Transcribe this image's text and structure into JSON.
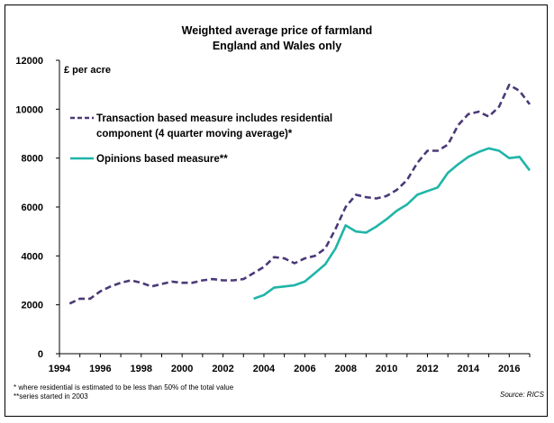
{
  "chart_data": {
    "type": "line",
    "title": "Weighted average price of farmland",
    "subtitle": "England and Wales only",
    "ylabel": "£ per acre",
    "xlim": [
      1994,
      2017
    ],
    "ylim": [
      0,
      12000
    ],
    "x_ticks": [
      1994,
      1996,
      1998,
      2000,
      2002,
      2004,
      2006,
      2008,
      2010,
      2012,
      2014,
      2016
    ],
    "y_ticks": [
      0,
      2000,
      4000,
      6000,
      8000,
      10000,
      12000
    ],
    "grid": false,
    "legend_position": "top-left",
    "series": [
      {
        "name": "Transaction based measure includes residential component (4 quarter moving average)*",
        "legend_lines": [
          "Transaction based measure includes residential",
          "component (4 quarter moving average)*"
        ],
        "color": "#4b3a78",
        "style": "dashed",
        "x": [
          1994.5,
          1995.0,
          1995.5,
          1996.0,
          1996.5,
          1997.0,
          1997.5,
          1998.0,
          1998.5,
          1999.0,
          1999.5,
          2000.0,
          2000.5,
          2001.0,
          2001.5,
          2002.0,
          2002.5,
          2003.0,
          2003.5,
          2004.0,
          2004.5,
          2005.0,
          2005.5,
          2006.0,
          2006.5,
          2007.0,
          2007.5,
          2008.0,
          2008.5,
          2009.0,
          2009.5,
          2010.0,
          2010.5,
          2011.0,
          2011.5,
          2012.0,
          2012.5,
          2013.0,
          2013.5,
          2014.0,
          2014.5,
          2015.0,
          2015.5,
          2016.0,
          2016.5,
          2017.0
        ],
        "values": [
          2050,
          2250,
          2250,
          2550,
          2750,
          2900,
          3000,
          2900,
          2750,
          2850,
          2950,
          2900,
          2900,
          3000,
          3050,
          3000,
          3000,
          3050,
          3300,
          3550,
          3950,
          3900,
          3700,
          3900,
          4000,
          4300,
          5100,
          6000,
          6500,
          6400,
          6350,
          6450,
          6700,
          7100,
          7800,
          8300,
          8300,
          8550,
          9350,
          9800,
          9900,
          9700,
          10100,
          11000,
          10750,
          10200
        ]
      },
      {
        "name": "Opinions based measure**",
        "legend_lines": [
          "Opinions based measure**"
        ],
        "color": "#1fb5a8",
        "style": "solid",
        "x": [
          2003.5,
          2004.0,
          2004.5,
          2005.0,
          2005.5,
          2006.0,
          2006.5,
          2007.0,
          2007.5,
          2008.0,
          2008.5,
          2009.0,
          2009.5,
          2010.0,
          2010.5,
          2011.0,
          2011.5,
          2012.0,
          2012.5,
          2013.0,
          2013.5,
          2014.0,
          2014.5,
          2015.0,
          2015.5,
          2016.0,
          2016.5,
          2017.0
        ],
        "values": [
          2250,
          2400,
          2700,
          2750,
          2800,
          2950,
          3300,
          3650,
          4300,
          5250,
          5000,
          4950,
          5200,
          5500,
          5850,
          6100,
          6500,
          6650,
          6800,
          7400,
          7750,
          8050,
          8250,
          8400,
          8300,
          8000,
          8050,
          7500
        ]
      }
    ]
  },
  "footnotes": [
    "* where residential is estimated to be less than 50% of the total value",
    "**series started in 2003"
  ],
  "source": "Source: RICS"
}
